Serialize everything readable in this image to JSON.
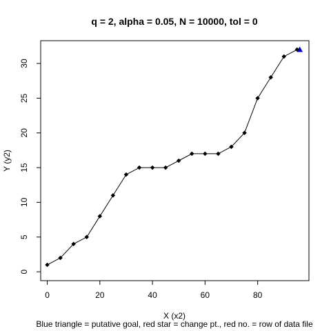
{
  "chart_data": {
    "type": "line",
    "title": "q = 2, alpha = 0.05, N = 10000, tol = 0",
    "xlabel": "X (x2)",
    "ylabel": "Y (y2)",
    "footer": "Blue triangle = putative goal, red star = change pt., red no. = row of data file",
    "xlim": [
      -2.5,
      99.5
    ],
    "ylim": [
      -1.28,
      33.28
    ],
    "x_ticks": [
      0,
      20,
      40,
      60,
      80
    ],
    "y_ticks": [
      0,
      5,
      10,
      15,
      20,
      25,
      30
    ],
    "grid": false,
    "series": [
      {
        "x": [
          0,
          5,
          10,
          15,
          20,
          25,
          30,
          35,
          40,
          45,
          50,
          55,
          60,
          65,
          70,
          75,
          80,
          85,
          90,
          95
        ],
        "y": [
          1,
          2,
          4,
          5,
          8,
          11,
          14,
          15,
          15,
          15,
          16,
          17,
          17,
          17,
          18,
          20,
          25,
          28,
          31,
          32
        ]
      }
    ],
    "goal_marker": {
      "x": 96,
      "y": 32
    },
    "colors": {
      "line": "#000000",
      "points": "#000000",
      "goal": "#0000cc"
    }
  }
}
